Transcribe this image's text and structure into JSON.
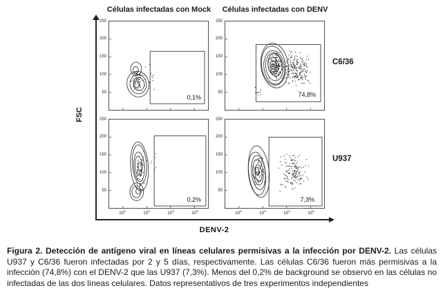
{
  "figure": {
    "column_titles": {
      "mock": "Células infectadas con Mock",
      "denv": "Células infectadas con DENV"
    },
    "row_labels": {
      "top": "C6/36",
      "bottom": "U937"
    },
    "axes": {
      "y_label": "FSC",
      "x_label": "DENV-2",
      "y_ticks": [
        "250",
        "200",
        "150",
        "100",
        "50"
      ],
      "x_base": "10",
      "x_exponents": [
        "2",
        "3",
        "4",
        "5"
      ]
    },
    "panels": [
      {
        "id": "c636-mock",
        "row": "C6/36",
        "column": "Mock",
        "percent": "0,1%"
      },
      {
        "id": "c636-denv",
        "row": "C6/36",
        "column": "DENV",
        "percent": "74,8%"
      },
      {
        "id": "u937-mock",
        "row": "U937",
        "column": "Mock",
        "percent": "0,2%"
      },
      {
        "id": "u937-denv",
        "row": "U937",
        "column": "DENV",
        "percent": "7,3%"
      }
    ]
  },
  "caption": {
    "bold": "Figura 2. Detección de antígeno viral en líneas celulares permisivas a la infección por DENV-2.",
    "text": "Las células U937 y C6/36 fueron infectadas por 2 y 5 días, respectivamente. Las células C6/36 fueron más permisivas a la infección (74,8%) con el DENV-2 que las U937 (7,3%). Menos del 0,2% de background se observó en las células no infectadas de las dos líneas celulares. Datos representativos de tres experimentos independientes"
  },
  "chart_data": {
    "type": "scatter",
    "subtype": "flow-cytometry-contour",
    "title": "Figura 2",
    "xlabel": "DENV-2",
    "ylabel": "FSC",
    "x_scale": "log",
    "x_ticks": [
      "10^2",
      "10^3",
      "10^4",
      "10^5"
    ],
    "y_ticks": [
      50,
      100,
      150,
      200,
      250
    ],
    "legend_position": "none",
    "grid": false,
    "panels": [
      {
        "row": "C6/36",
        "column": "Células infectadas con Mock",
        "gate_percent": 0.1,
        "gate_percent_label": "0,1%"
      },
      {
        "row": "C6/36",
        "column": "Células infectadas con DENV",
        "gate_percent": 74.8,
        "gate_percent_label": "74,8%"
      },
      {
        "row": "U937",
        "column": "Células infectadas con Mock",
        "gate_percent": 0.2,
        "gate_percent_label": "0,2%"
      },
      {
        "row": "U937",
        "column": "Células infectadas con DENV",
        "gate_percent": 7.3,
        "gate_percent_label": "7,3%"
      }
    ]
  }
}
